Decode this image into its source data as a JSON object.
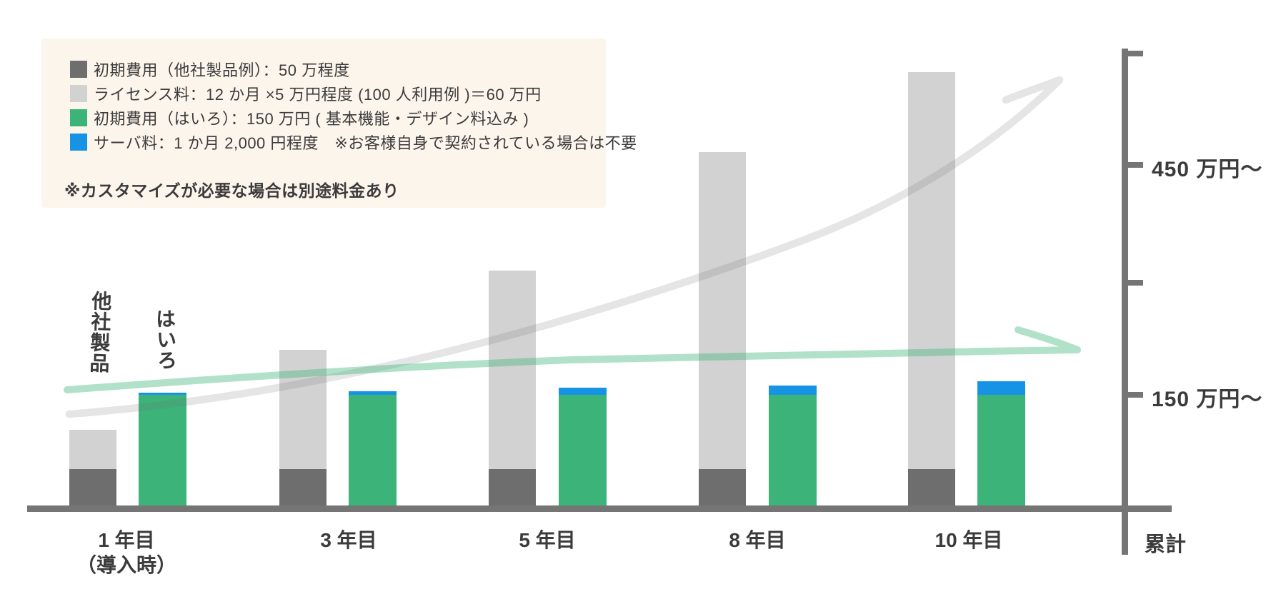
{
  "colors": {
    "dark_gray": "#6e6e6e",
    "light_gray": "#d2d2d2",
    "green": "#3cb379",
    "blue": "#1793e6",
    "axis": "#757575",
    "text": "#3b3b3b",
    "legend_bg": "#fcf5ec",
    "trend_other": "#6e6e6e",
    "trend_hairo": "#3cb379"
  },
  "legend": {
    "items": [
      {
        "name": "initial-cost-other",
        "color": "#6e6e6e",
        "label": "初期費用（他社製品例）：50 万程度"
      },
      {
        "name": "license-fee",
        "color": "#d2d2d2",
        "label": "ライセンス料：12 か月 ×5 万円程度 (100 人利用例 )＝60 万円"
      },
      {
        "name": "initial-cost-hairo",
        "color": "#3cb379",
        "label": "初期費用（はいろ）：150 万円 ( 基本機能・デザイン料込み )"
      },
      {
        "name": "server-fee",
        "color": "#1793e6",
        "label": "サーバ料：1 か月 2,000 円程度　※お客様自身で契約されている場合は不要"
      }
    ],
    "note": "※カスタマイズが必要な場合は別途料金あり"
  },
  "series_labels": {
    "other": "他社製品",
    "hairo": "はいろ"
  },
  "x_axis": {
    "labels": [
      "1 年目",
      "3 年目",
      "5 年目",
      "8 年目",
      "10 年目"
    ],
    "sub_label": "（導入時）",
    "end_label": "累計"
  },
  "y_axis": {
    "upper_label": "450 万円〜",
    "lower_label": "150 万円〜"
  },
  "chart_data": {
    "type": "bar",
    "stacked": true,
    "unit": "万円",
    "title": "",
    "categories": [
      "1年目（導入時）",
      "3年目",
      "5年目",
      "8年目",
      "10年目"
    ],
    "series": [
      {
        "name": "初期費用（他社製品例）",
        "group": "他社製品",
        "color": "#6e6e6e",
        "values": [
          50,
          50,
          50,
          50,
          50
        ]
      },
      {
        "name": "ライセンス料（累計）",
        "group": "他社製品",
        "color": "#d2d2d2",
        "values": [
          60,
          180,
          300,
          480,
          600
        ]
      },
      {
        "name": "初期費用（はいろ）",
        "group": "はいろ",
        "color": "#3cb379",
        "values": [
          150,
          150,
          150,
          150,
          150
        ]
      },
      {
        "name": "サーバ料（累計）",
        "group": "はいろ",
        "color": "#1793e6",
        "values": [
          2.4,
          7.2,
          12,
          19.2,
          24
        ]
      }
    ],
    "trend_lines": [
      {
        "name": "他社製品 累計",
        "color": "#e3e3e3",
        "values": [
          110,
          230,
          350,
          530,
          650
        ]
      },
      {
        "name": "はいろ 累計",
        "color": "#aed8c0",
        "values": [
          152.4,
          157.2,
          162,
          169.2,
          174
        ]
      }
    ],
    "y_axis": {
      "tick_labels": [
        "450 万円〜",
        "150 万円〜"
      ],
      "unlabeled_ticks": 2,
      "range_top": 600
    },
    "x_end_label": "累計",
    "legend_position": "top-left",
    "grid": false
  }
}
